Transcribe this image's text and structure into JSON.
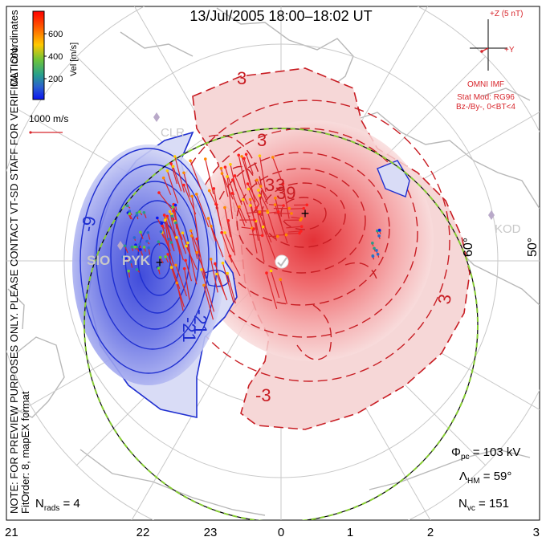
{
  "title": "13/Jul/2005 18:00–18:02 UT",
  "colorbar": {
    "label": "Vel [m/s]",
    "ticks": [
      "600",
      "400",
      "200"
    ],
    "colors": [
      "#ff0000",
      "#ff6600",
      "#ffcc00",
      "#66cc33",
      "#2a9a88",
      "#2a6ad0",
      "#0a14f0"
    ]
  },
  "coord_label": "MLT coordinates",
  "vector_scale": "1000 m/s",
  "side_note_1": "NOTE: FOR PREVIEW PURPOSES ONLY. PLEASE CONTACT VT-SD STAFF FOR VERIFICATION.",
  "side_note_2": "FitOrder: 8, mapEX format",
  "imf": {
    "z_label": "+Z (5 nT)",
    "y_label": "+Y",
    "source": "OMNI IMF",
    "stat_mod": "Stat Mod: RG96",
    "condition": "Bz-/By-, 0<BT<4"
  },
  "latitude_labels": [
    "60°",
    "50°"
  ],
  "mlt_labels": [
    "21",
    "22",
    "23",
    "0",
    "1",
    "2",
    "3"
  ],
  "stations": [
    "CLR",
    "SIO",
    "PYK",
    "KOD"
  ],
  "contour_labels": {
    "negative": [
      "-9",
      "-21",
      "-21"
    ],
    "positive": [
      "3",
      "3",
      "-3",
      "3",
      "3",
      "3",
      "39"
    ]
  },
  "stats": {
    "phi_pc": "Φpc = 103 kV",
    "lambda_hm": "ΛHM = 59°",
    "n_vc": "Nvc = 151",
    "n_rads": "Nrads = 4"
  },
  "colors": {
    "positive": "#e8242a",
    "negative": "#1f2fd0",
    "hm_boundary_green": "#86cc33",
    "land": "#bdbdbd",
    "grid": "#c8c8c8"
  }
}
